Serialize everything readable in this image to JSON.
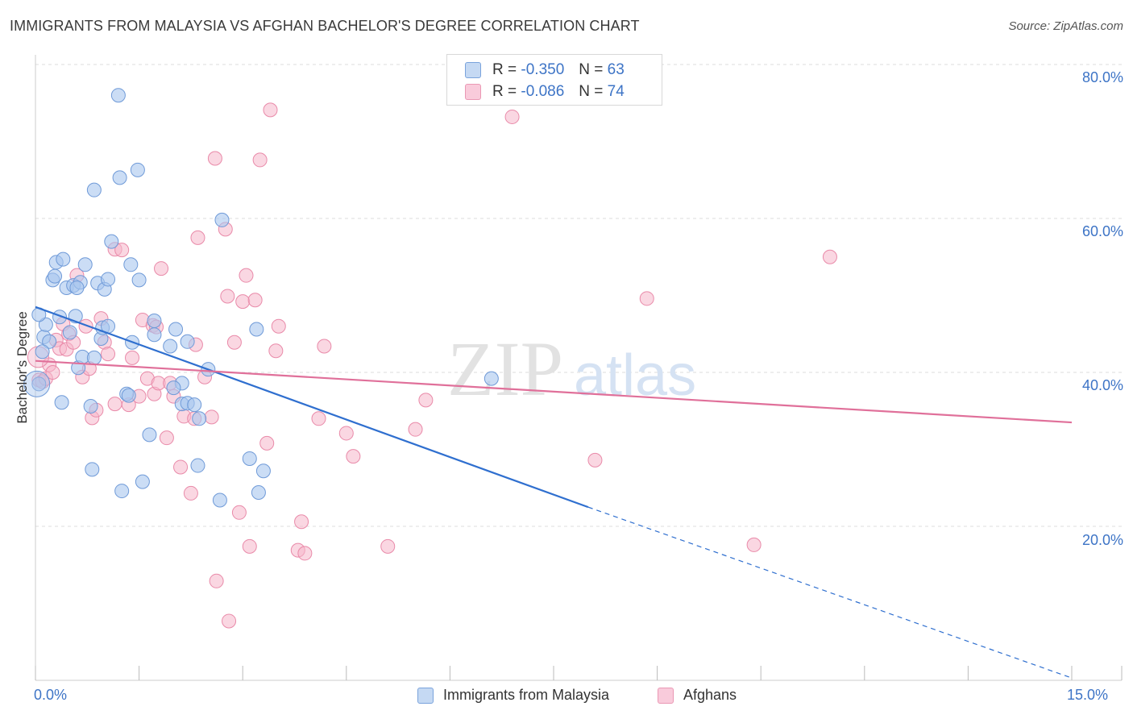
{
  "title": "IMMIGRANTS FROM MALAYSIA VS AFGHAN BACHELOR'S DEGREE CORRELATION CHART",
  "source": "Source: ZipAtlas.com",
  "watermark": {
    "part1": "ZIP",
    "part2": "atlas"
  },
  "legend": {
    "r_label": "R =",
    "n_label": "N =",
    "series": [
      {
        "r": "-0.350",
        "n": "63",
        "name": "Immigrants from Malaysia"
      },
      {
        "r": "-0.086",
        "n": "74",
        "name": "Afghans"
      }
    ]
  },
  "colors": {
    "blue_fill": "#a9c6ee",
    "blue_stroke": "#6f9ad8",
    "blue_line": "#2f6fcf",
    "pink_fill": "#f5b6cb",
    "pink_stroke": "#e98aa9",
    "pink_line": "#e0709a",
    "grid": "#dddddd",
    "tick_text": "#3d74c6"
  },
  "chart_data": {
    "type": "scatter",
    "title": "IMMIGRANTS FROM MALAYSIA VS AFGHAN BACHELOR'S DEGREE CORRELATION CHART",
    "xlabel": "",
    "ylabel": "Bachelor's Degree",
    "xlim": [
      0,
      15
    ],
    "ylim": [
      0,
      80
    ],
    "x_tick_labels": [
      "0.0%",
      "15.0%"
    ],
    "y_ticks": [
      20,
      40,
      60,
      80
    ],
    "y_tick_labels": [
      "20.0%",
      "40.0%",
      "60.0%",
      "80.0%"
    ],
    "grid": true,
    "series": [
      {
        "name": "Immigrants from Malaysia",
        "r": -0.35,
        "n": 63,
        "trend": {
          "x0": 0.0,
          "y0": 48.5,
          "x1": 8.0,
          "y1": 22.5,
          "dashed_to_x": 15.0,
          "dashed_to_y": 0.3
        },
        "points": [
          [
            0.05,
            38.5
          ],
          [
            0.12,
            44.6
          ],
          [
            0.15,
            46.2
          ],
          [
            0.2,
            44.0
          ],
          [
            0.25,
            52.0
          ],
          [
            0.28,
            52.5
          ],
          [
            0.3,
            54.3
          ],
          [
            0.35,
            47.2
          ],
          [
            0.38,
            36.1
          ],
          [
            0.4,
            54.7
          ],
          [
            0.45,
            51.0
          ],
          [
            0.5,
            45.2
          ],
          [
            0.55,
            51.3
          ],
          [
            0.58,
            47.3
          ],
          [
            0.62,
            40.6
          ],
          [
            0.65,
            51.7
          ],
          [
            0.68,
            42.0
          ],
          [
            0.72,
            54.0
          ],
          [
            0.8,
            35.6
          ],
          [
            0.82,
            27.4
          ],
          [
            0.85,
            41.9
          ],
          [
            0.85,
            63.7
          ],
          [
            0.9,
            51.6
          ],
          [
            0.95,
            44.4
          ],
          [
            0.97,
            45.8
          ],
          [
            1.0,
            50.8
          ],
          [
            1.05,
            52.1
          ],
          [
            1.1,
            57.0
          ],
          [
            1.2,
            76.0
          ],
          [
            1.22,
            65.3
          ],
          [
            1.25,
            24.6
          ],
          [
            1.32,
            37.2
          ],
          [
            1.38,
            54.0
          ],
          [
            1.4,
            43.9
          ],
          [
            1.5,
            52.0
          ],
          [
            1.55,
            25.8
          ],
          [
            1.48,
            66.3
          ],
          [
            1.65,
            31.9
          ],
          [
            1.72,
            46.7
          ],
          [
            1.72,
            44.9
          ],
          [
            1.95,
            43.4
          ],
          [
            2.03,
            45.6
          ],
          [
            2.12,
            38.6
          ],
          [
            2.12,
            35.9
          ],
          [
            2.2,
            36.0
          ],
          [
            2.2,
            44.0
          ],
          [
            2.3,
            35.8
          ],
          [
            2.35,
            27.9
          ],
          [
            2.37,
            34.0
          ],
          [
            2.5,
            40.4
          ],
          [
            2.67,
            23.4
          ],
          [
            2.7,
            59.8
          ],
          [
            3.2,
            45.6
          ],
          [
            3.23,
            24.4
          ],
          [
            3.3,
            27.2
          ],
          [
            3.1,
            28.8
          ],
          [
            6.6,
            39.2
          ],
          [
            0.05,
            47.5
          ],
          [
            0.1,
            42.7
          ],
          [
            0.6,
            51.0
          ],
          [
            1.05,
            46.0
          ],
          [
            1.35,
            37.0
          ],
          [
            2.0,
            38.0
          ]
        ]
      },
      {
        "name": "Afghans",
        "r": -0.086,
        "n": 74,
        "trend": {
          "x0": 0.0,
          "y0": 41.5,
          "x1": 15.0,
          "y1": 33.5
        },
        "points": [
          [
            0.05,
            39.0
          ],
          [
            0.1,
            38.8
          ],
          [
            0.15,
            39.2
          ],
          [
            0.2,
            41.0
          ],
          [
            0.25,
            40.0
          ],
          [
            0.3,
            44.2
          ],
          [
            0.35,
            43.1
          ],
          [
            0.4,
            46.3
          ],
          [
            0.45,
            43.0
          ],
          [
            0.48,
            45.0
          ],
          [
            0.55,
            43.9
          ],
          [
            0.6,
            52.6
          ],
          [
            0.68,
            39.4
          ],
          [
            0.73,
            46.0
          ],
          [
            0.78,
            40.5
          ],
          [
            0.82,
            34.1
          ],
          [
            0.88,
            35.1
          ],
          [
            0.95,
            47.0
          ],
          [
            1.0,
            43.9
          ],
          [
            1.05,
            42.4
          ],
          [
            1.15,
            35.9
          ],
          [
            1.15,
            56.0
          ],
          [
            1.25,
            55.9
          ],
          [
            1.35,
            35.8
          ],
          [
            1.4,
            41.9
          ],
          [
            1.5,
            36.9
          ],
          [
            1.55,
            46.8
          ],
          [
            1.62,
            39.2
          ],
          [
            1.7,
            46.1
          ],
          [
            1.72,
            37.2
          ],
          [
            1.75,
            45.9
          ],
          [
            1.78,
            38.6
          ],
          [
            1.82,
            53.5
          ],
          [
            1.9,
            31.5
          ],
          [
            1.95,
            38.6
          ],
          [
            2.0,
            36.9
          ],
          [
            2.1,
            27.7
          ],
          [
            2.15,
            34.3
          ],
          [
            2.25,
            24.3
          ],
          [
            2.3,
            34.0
          ],
          [
            2.32,
            43.6
          ],
          [
            2.35,
            57.5
          ],
          [
            2.45,
            39.4
          ],
          [
            2.55,
            34.2
          ],
          [
            2.6,
            67.8
          ],
          [
            2.62,
            12.9
          ],
          [
            2.75,
            58.6
          ],
          [
            2.78,
            49.9
          ],
          [
            2.8,
            7.7
          ],
          [
            2.88,
            43.9
          ],
          [
            2.95,
            21.8
          ],
          [
            3.0,
            49.2
          ],
          [
            3.05,
            52.6
          ],
          [
            3.1,
            17.4
          ],
          [
            3.18,
            49.4
          ],
          [
            3.25,
            67.6
          ],
          [
            3.35,
            30.8
          ],
          [
            3.4,
            74.1
          ],
          [
            3.48,
            42.8
          ],
          [
            3.52,
            46.0
          ],
          [
            3.8,
            16.9
          ],
          [
            3.85,
            20.6
          ],
          [
            3.9,
            16.5
          ],
          [
            4.1,
            34.0
          ],
          [
            4.18,
            43.4
          ],
          [
            4.5,
            32.1
          ],
          [
            4.6,
            29.1
          ],
          [
            5.1,
            17.4
          ],
          [
            5.5,
            32.6
          ],
          [
            5.65,
            36.4
          ],
          [
            6.9,
            73.2
          ],
          [
            8.1,
            28.6
          ],
          [
            8.85,
            49.6
          ],
          [
            10.4,
            17.6
          ]
        ]
      }
    ],
    "extra_points": [
      [
        11.5,
        55.0
      ]
    ]
  }
}
